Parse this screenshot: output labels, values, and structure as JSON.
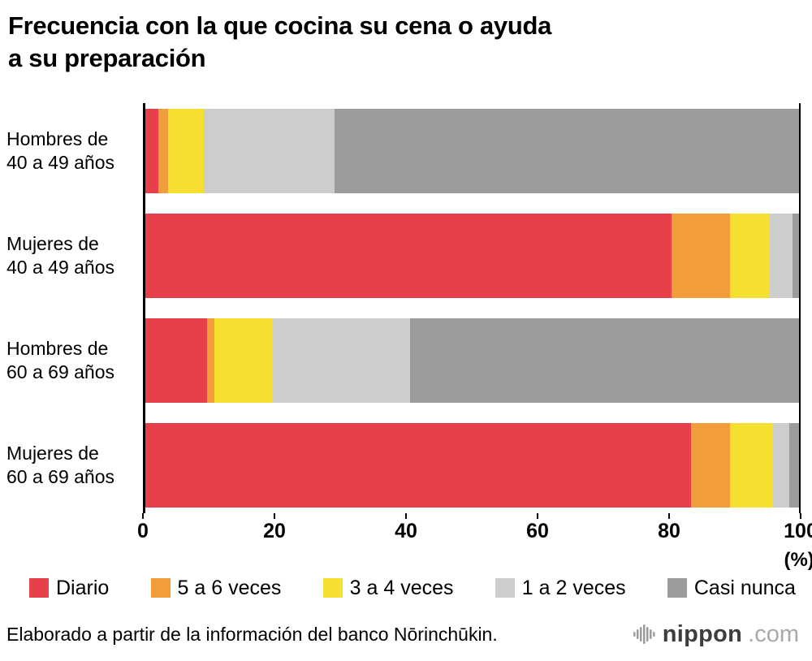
{
  "title": {
    "line1": "Frecuencia con la que cocina su cena o ayuda",
    "line2": "a su preparación"
  },
  "chart_data": {
    "type": "bar",
    "orientation": "horizontal",
    "stacked": true,
    "grid": false,
    "legend_position": "bottom",
    "unit_label": "(%)",
    "xlim": [
      0,
      100
    ],
    "x_ticks": [
      "0",
      "20",
      "40",
      "60",
      "80",
      "100"
    ],
    "categories": [
      {
        "lines": [
          "Hombres de",
          "40 a 49 años"
        ]
      },
      {
        "lines": [
          "Mujeres de",
          "40 a 49 años"
        ]
      },
      {
        "lines": [
          "Hombres de",
          "60 a 69 años"
        ]
      },
      {
        "lines": [
          "Mujeres de",
          "60 a 69 años"
        ]
      }
    ],
    "series": [
      {
        "name": "Diario",
        "color": "#e8404a",
        "values": [
          2.0,
          80.5,
          9.5,
          83.5
        ]
      },
      {
        "name": "5 a 6 veces",
        "color": "#f09d3a",
        "values": [
          1.5,
          9.0,
          1.0,
          6.0
        ]
      },
      {
        "name": "3 a 4 veces",
        "color": "#f5e02f",
        "values": [
          5.5,
          6.0,
          9.0,
          6.5
        ]
      },
      {
        "name": "1 a 2 veces",
        "color": "#cdcdcd",
        "values": [
          20.0,
          3.5,
          21.0,
          2.5
        ]
      },
      {
        "name": "Casi nunca",
        "color": "#9b9b9b",
        "values": [
          71.0,
          1.0,
          59.5,
          1.5
        ]
      }
    ]
  },
  "footer": {
    "source": "Elaborado a partir de la información del banco Nōrinchūkin.",
    "logo": {
      "icon": "nippon-soundwave-icon",
      "text": "nippon",
      "domain": ".com",
      "text_color": "#3d3d3d",
      "domain_color": "#a9a9a9",
      "icon_color": "#9b9b9b"
    }
  }
}
